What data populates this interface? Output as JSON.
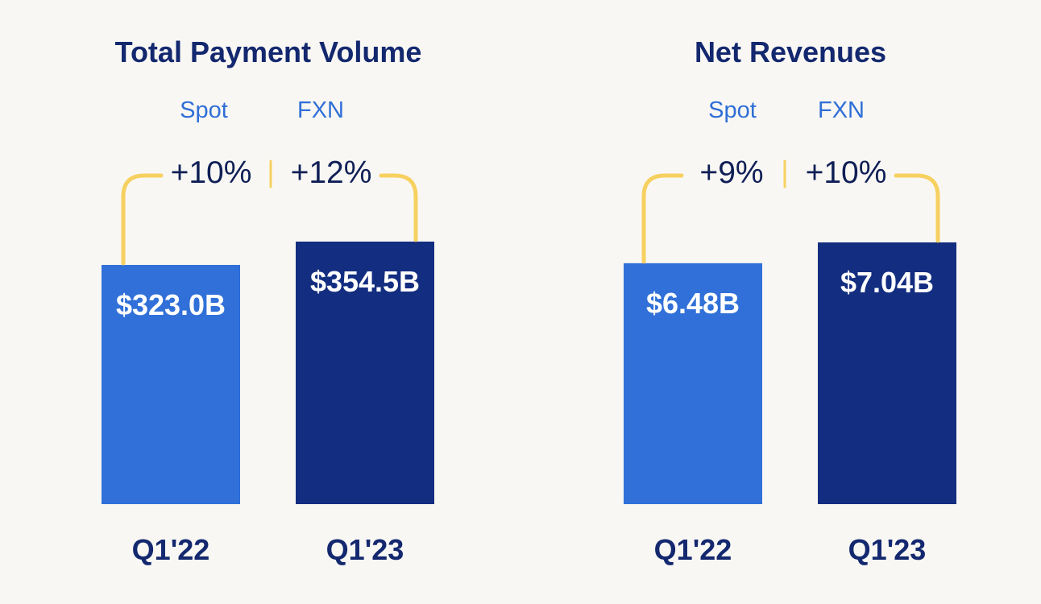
{
  "colors": {
    "background": "#f9f7f4",
    "bar_prior": "#3070d8",
    "bar_current": "#132d80",
    "bracket": "#f6d160",
    "title": "#13286e",
    "growth_label": "#2f6fd6",
    "growth_value": "#0f1f55"
  },
  "chart_data": [
    {
      "type": "bar",
      "title": "Total Payment Volume",
      "categories": [
        "Q1'22",
        "Q1'23"
      ],
      "values": [
        323.0,
        354.5
      ],
      "value_labels": [
        "$323.0B",
        "$354.5B"
      ],
      "unit": "$B",
      "growth": {
        "spot_label": "Spot",
        "spot_value": "+10%",
        "fxn_label": "FXN",
        "fxn_value": "+12%"
      }
    },
    {
      "type": "bar",
      "title": "Net Revenues",
      "categories": [
        "Q1'22",
        "Q1'23"
      ],
      "values": [
        6.48,
        7.04
      ],
      "value_labels": [
        "$6.48B",
        "$7.04B"
      ],
      "unit": "$B",
      "growth": {
        "spot_label": "Spot",
        "spot_value": "+9%",
        "fxn_label": "FXN",
        "fxn_value": "+10%"
      }
    }
  ]
}
